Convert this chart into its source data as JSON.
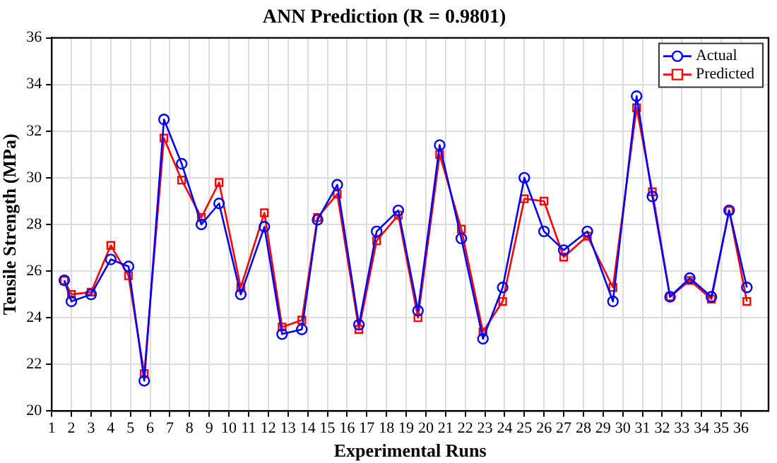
{
  "chart_data": {
    "type": "line",
    "title": "ANN Prediction (R = 0.9801)",
    "xlabel": "Experimental Runs",
    "ylabel": "Tensile Strength (MPa)",
    "x": [
      1.64,
      2,
      3,
      4,
      4.9,
      5.7,
      6.7,
      7.6,
      8.6,
      9.5,
      10.6,
      11.8,
      12.7,
      13.7,
      14.5,
      15.5,
      16.6,
      17.5,
      18.6,
      19.6,
      20.7,
      21.8,
      22.9,
      23.9,
      25,
      26,
      27,
      28.2,
      29.5,
      30.7,
      31.5,
      32.4,
      33.4,
      34.5,
      35.4,
      36.3
    ],
    "series": [
      {
        "name": "Actual",
        "color": "#0000ff",
        "marker": "circle",
        "values": [
          25.6,
          24.7,
          25.0,
          26.5,
          26.2,
          21.3,
          32.5,
          30.6,
          28.0,
          28.9,
          25.0,
          27.9,
          23.3,
          23.5,
          28.2,
          29.7,
          23.7,
          27.7,
          28.6,
          24.3,
          31.4,
          27.4,
          23.1,
          25.3,
          30.0,
          27.7,
          26.9,
          27.7,
          24.7,
          33.5,
          29.2,
          24.9,
          25.7,
          24.9,
          28.6,
          25.3
        ]
      },
      {
        "name": "Predicted",
        "color": "#ff0000",
        "marker": "square",
        "values": [
          25.6,
          25.0,
          25.1,
          27.1,
          25.8,
          21.6,
          31.7,
          29.9,
          28.3,
          29.8,
          25.3,
          28.5,
          23.6,
          23.9,
          28.3,
          29.3,
          23.5,
          27.3,
          28.4,
          24.0,
          31.0,
          27.8,
          23.4,
          24.7,
          29.1,
          29.0,
          26.6,
          27.5,
          25.3,
          33.0,
          29.4,
          24.9,
          25.6,
          24.8,
          28.6,
          24.7
        ]
      }
    ],
    "xlim": [
      1,
      37.4
    ],
    "xticks": [
      1,
      2,
      3,
      4,
      5,
      6,
      7,
      8,
      9,
      10,
      11,
      12,
      13,
      14,
      15,
      16,
      17,
      18,
      19,
      20,
      21,
      22,
      23,
      24,
      25,
      26,
      27,
      28,
      29,
      30,
      31,
      32,
      33,
      34,
      35,
      36
    ],
    "ylim": [
      20,
      36
    ],
    "yticks": [
      20,
      22,
      24,
      26,
      28,
      30,
      32,
      34,
      36
    ],
    "grid": true,
    "legend": "top right",
    "line_style": "solid"
  }
}
